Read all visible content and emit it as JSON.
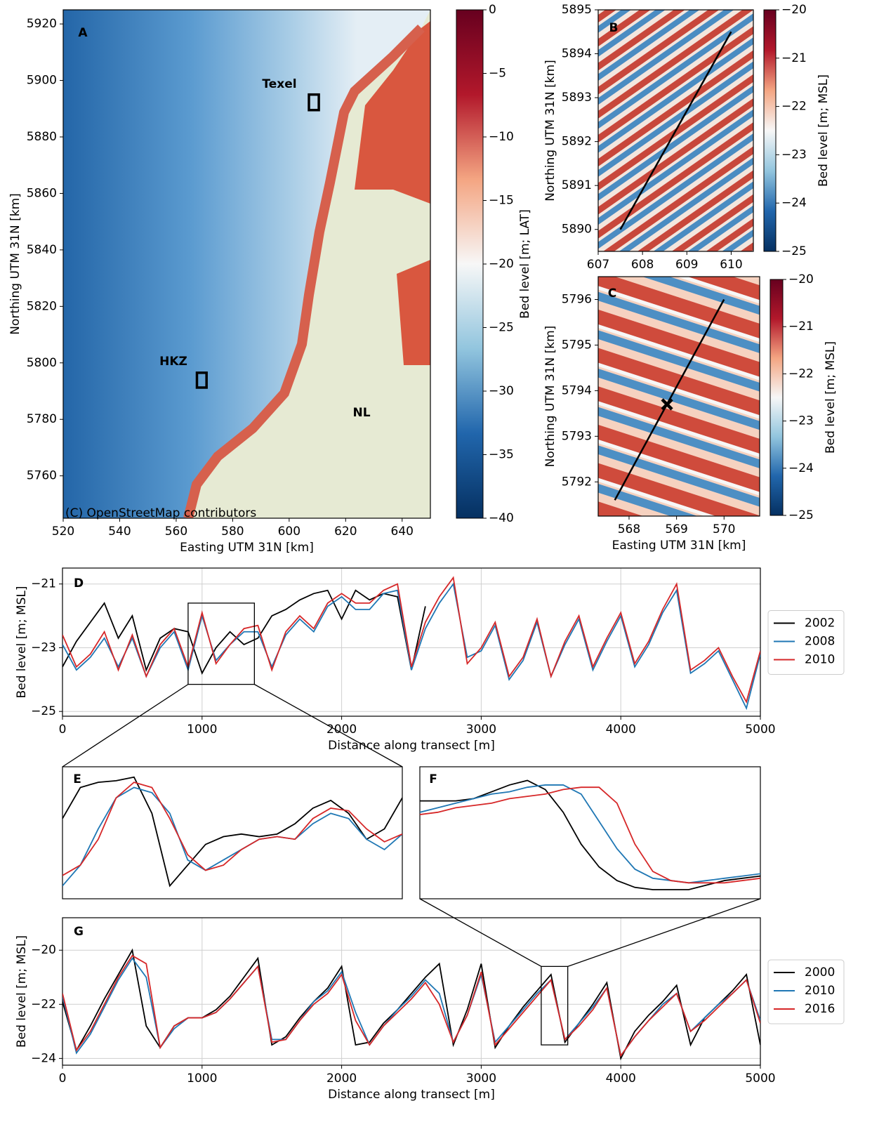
{
  "chart_data": [
    {
      "type": "map",
      "title": "A",
      "xlabel": "Easting UTM 31N [km]",
      "ylabel": "Northing UTM 31N [km]",
      "xlim": [
        520,
        650
      ],
      "ylim": [
        5745,
        5925
      ],
      "xticks": [
        520,
        540,
        560,
        580,
        600,
        620,
        640
      ],
      "yticks": [
        5760,
        5780,
        5800,
        5820,
        5840,
        5860,
        5880,
        5900,
        5920
      ],
      "annotations": [
        "Texel",
        "HKZ",
        "NL",
        "(C) OpenStreetMap contributors"
      ],
      "colorbar": {
        "label": "Bed level [m; LAT]",
        "clim": [
          -40,
          0
        ],
        "ticks": [
          0,
          {
            "value": -5,
            "label": "−5"
          },
          {
            "value": -10,
            "label": "−10"
          },
          {
            "value": -15,
            "label": "−15"
          },
          {
            "value": -20,
            "label": "−20"
          },
          {
            "value": -25,
            "label": "−25"
          },
          {
            "value": -30,
            "label": "−30"
          },
          {
            "value": -35,
            "label": "−35"
          },
          {
            "value": -40,
            "label": "−40"
          }
        ],
        "colormap": [
          "#053061",
          "#2166ac",
          "#92c5de",
          "#f7f7f7",
          "#f4a582",
          "#b2182b",
          "#67001f"
        ]
      }
    },
    {
      "type": "map",
      "title": "B",
      "ylabel": "Northing UTM 31N [km]",
      "xlim": [
        607,
        610.5
      ],
      "ylim": [
        5889.5,
        5895
      ],
      "xticks": [
        607,
        608,
        609,
        610
      ],
      "yticks": [
        5890,
        5891,
        5892,
        5893,
        5894,
        5895
      ],
      "transect": {
        "x": [
          607.5,
          610
        ],
        "y": [
          5890,
          5894.5
        ]
      },
      "colorbar": {
        "label": "Bed level [m; MSL]",
        "clim": [
          -25,
          -20
        ],
        "ticks": [
          {
            "value": -20,
            "label": "−20"
          },
          {
            "value": -21,
            "label": "−21"
          },
          {
            "value": -22,
            "label": "−22"
          },
          {
            "value": -23,
            "label": "−23"
          },
          {
            "value": -24,
            "label": "−24"
          },
          {
            "value": -25,
            "label": "−25"
          }
        ],
        "colormap": [
          "#053061",
          "#2166ac",
          "#92c5de",
          "#f7f7f7",
          "#f4a582",
          "#b2182b",
          "#67001f"
        ]
      }
    },
    {
      "type": "map",
      "title": "C",
      "xlabel": "Easting UTM 31N [km]",
      "ylabel": "Northing UTM 31N [km]",
      "xlim": [
        567.35,
        570.75
      ],
      "ylim": [
        5791.25,
        5796.5
      ],
      "xticks": [
        568,
        569,
        570
      ],
      "yticks": [
        5792,
        5793,
        5794,
        5795,
        5796
      ],
      "transect": {
        "x": [
          567.7,
          570
        ],
        "y": [
          5791.6,
          5796
        ]
      },
      "marker": {
        "x": 568.8,
        "y": 5793.7
      },
      "colorbar": {
        "label": "Bed level [m; MSL]",
        "clim": [
          -25,
          -20
        ],
        "ticks": [
          {
            "value": -20,
            "label": "−20"
          },
          {
            "value": -21,
            "label": "−21"
          },
          {
            "value": -22,
            "label": "−22"
          },
          {
            "value": -23,
            "label": "−23"
          },
          {
            "value": -24,
            "label": "−24"
          },
          {
            "value": -25,
            "label": "−25"
          }
        ],
        "colormap": [
          "#053061",
          "#2166ac",
          "#92c5de",
          "#f7f7f7",
          "#f4a582",
          "#b2182b",
          "#67001f"
        ]
      }
    },
    {
      "type": "line",
      "title": "D",
      "xlabel": "Distance along transect [m]",
      "ylabel": "Bed level [m; MSL]",
      "xlim": [
        0,
        5000
      ],
      "ylim": [
        -25.15,
        -20.5
      ],
      "grid": true,
      "legend": "right",
      "xticks": [
        0,
        1000,
        2000,
        3000,
        4000,
        5000
      ],
      "yticks": [
        {
          "value": -21,
          "label": "−21"
        },
        {
          "value": -23,
          "label": "−23"
        },
        {
          "value": -25,
          "label": "−25"
        }
      ],
      "x": [
        0,
        100,
        200,
        300,
        400,
        500,
        600,
        700,
        800,
        900,
        1000,
        1100,
        1200,
        1300,
        1400,
        1500,
        1600,
        1700,
        1800,
        1900,
        2000,
        2100,
        2200,
        2300,
        2400,
        2500,
        2600,
        2700,
        2800,
        2900,
        3000,
        3100,
        3200,
        3300,
        3400,
        3500,
        3600,
        3700,
        3800,
        3900,
        4000,
        4100,
        4200,
        4300,
        4400,
        4500,
        4600,
        4700,
        4800,
        4900,
        5000
      ],
      "series": [
        {
          "name": "2002",
          "color": "#000000",
          "values": [
            -23.6,
            -22.8,
            -22.2,
            -21.6,
            -22.7,
            -22.0,
            -23.7,
            -22.7,
            -22.4,
            -22.5,
            -23.8,
            -23.0,
            -22.5,
            -22.9,
            -22.7,
            -22.0,
            -21.8,
            -21.5,
            -21.3,
            -21.2,
            -22.1,
            -21.2,
            -21.5,
            -21.3,
            -21.4,
            -23.7,
            -21.7,
            null,
            null,
            null,
            null,
            null,
            null,
            null,
            null,
            null,
            null,
            null,
            null,
            null,
            null,
            null,
            null,
            null,
            null,
            null,
            null,
            null,
            null,
            null,
            null
          ]
        },
        {
          "name": "2008",
          "color": "#1f77b4",
          "values": [
            -22.9,
            -23.7,
            -23.3,
            -22.7,
            -23.6,
            -22.7,
            -23.9,
            -23.0,
            -22.5,
            -23.7,
            -22.0,
            -23.4,
            -22.9,
            -22.5,
            -22.5,
            -23.6,
            -22.6,
            -22.1,
            -22.5,
            -21.7,
            -21.4,
            -21.8,
            -21.8,
            -21.3,
            -21.2,
            -23.7,
            -22.4,
            -21.6,
            -21.0,
            -23.3,
            -23.1,
            -22.3,
            -24.0,
            -23.4,
            -22.2,
            -23.9,
            -22.9,
            -22.1,
            -23.7,
            -22.8,
            -22.0,
            -23.6,
            -22.9,
            -21.9,
            -21.2,
            -23.8,
            -23.5,
            -23.1,
            -24.0,
            -24.9,
            -23.2
          ]
        },
        {
          "name": "2010",
          "color": "#d62728",
          "values": [
            -22.6,
            -23.6,
            -23.2,
            -22.5,
            -23.7,
            -22.6,
            -23.9,
            -22.9,
            -22.4,
            -23.6,
            -21.9,
            -23.5,
            -22.9,
            -22.4,
            -22.3,
            -23.7,
            -22.5,
            -22.0,
            -22.4,
            -21.6,
            -21.3,
            -21.6,
            -21.6,
            -21.2,
            -21.0,
            -23.6,
            -22.2,
            -21.4,
            -20.8,
            -23.5,
            -23.0,
            -22.2,
            -23.9,
            -23.3,
            -22.1,
            -23.9,
            -22.8,
            -22.0,
            -23.6,
            -22.7,
            -21.9,
            -23.5,
            -22.8,
            -21.8,
            -21.0,
            -23.7,
            -23.4,
            -23.0,
            -23.9,
            -24.7,
            -23.1
          ]
        }
      ]
    },
    {
      "type": "line",
      "title": "E",
      "xlim": [
        900,
        1375
      ],
      "ylim": [
        -24.15,
        -21.6
      ],
      "x": [
        900,
        925,
        950,
        975,
        1000,
        1025,
        1050,
        1075,
        1100,
        1125,
        1150,
        1175,
        1200,
        1225,
        1250,
        1275,
        1300,
        1325,
        1350,
        1375
      ],
      "series": [
        {
          "color": "#000000",
          "values": [
            -22.6,
            -22.0,
            -21.9,
            -21.87,
            -21.8,
            -22.5,
            -23.9,
            -23.5,
            -23.1,
            -22.95,
            -22.9,
            -22.95,
            -22.9,
            -22.7,
            -22.4,
            -22.25,
            -22.5,
            -23.0,
            -22.8,
            -22.2
          ]
        },
        {
          "color": "#1f77b4",
          "values": [
            -23.9,
            -23.5,
            -22.8,
            -22.2,
            -22.0,
            -22.1,
            -22.5,
            -23.4,
            -23.6,
            -23.4,
            -23.2,
            -23.0,
            -22.95,
            -23.0,
            -22.7,
            -22.5,
            -22.6,
            -23.0,
            -23.2,
            -22.9
          ]
        },
        {
          "color": "#d62728",
          "values": [
            -23.7,
            -23.5,
            -23.0,
            -22.2,
            -21.9,
            -22.0,
            -22.6,
            -23.3,
            -23.6,
            -23.5,
            -23.2,
            -23.0,
            -22.95,
            -23.0,
            -22.6,
            -22.4,
            -22.45,
            -22.8,
            -23.05,
            -22.9
          ]
        }
      ]
    },
    {
      "type": "line",
      "title": "F",
      "xlim": [
        3430,
        3620
      ],
      "ylim": [
        -23.5,
        -20.6
      ],
      "x": [
        3430,
        3440,
        3450,
        3460,
        3470,
        3480,
        3490,
        3500,
        3510,
        3520,
        3530,
        3540,
        3550,
        3560,
        3570,
        3580,
        3590,
        3600,
        3610,
        3620
      ],
      "series": [
        {
          "color": "#000000",
          "values": [
            -21.35,
            -21.35,
            -21.35,
            -21.3,
            -21.15,
            -21.0,
            -20.9,
            -21.1,
            -21.6,
            -22.3,
            -22.8,
            -23.1,
            -23.25,
            -23.3,
            -23.3,
            -23.3,
            -23.2,
            -23.1,
            -23.05,
            -23.0
          ]
        },
        {
          "color": "#1f77b4",
          "values": [
            -21.6,
            -21.5,
            -21.4,
            -21.3,
            -21.2,
            -21.15,
            -21.05,
            -21.0,
            -21.0,
            -21.2,
            -21.8,
            -22.4,
            -22.85,
            -23.05,
            -23.1,
            -23.15,
            -23.1,
            -23.05,
            -23.0,
            -22.95
          ]
        },
        {
          "color": "#d62728",
          "values": [
            -21.65,
            -21.6,
            -21.5,
            -21.45,
            -21.4,
            -21.3,
            -21.25,
            -21.2,
            -21.1,
            -21.05,
            -21.05,
            -21.4,
            -22.3,
            -22.9,
            -23.1,
            -23.15,
            -23.15,
            -23.15,
            -23.1,
            -23.05
          ]
        }
      ]
    },
    {
      "type": "line",
      "title": "G",
      "xlabel": "Distance along transect [m]",
      "ylabel": "Bed level [m; MSL]",
      "xlim": [
        0,
        5000
      ],
      "ylim": [
        -24.25,
        -18.8
      ],
      "grid": true,
      "legend": "right",
      "xticks": [
        0,
        1000,
        2000,
        3000,
        4000,
        5000
      ],
      "yticks": [
        {
          "value": -20,
          "label": "−20"
        },
        {
          "value": -22,
          "label": "−22"
        },
        {
          "value": -24,
          "label": "−24"
        }
      ],
      "x": [
        0,
        100,
        200,
        300,
        400,
        500,
        600,
        700,
        800,
        900,
        1000,
        1100,
        1200,
        1300,
        1400,
        1500,
        1600,
        1700,
        1800,
        1900,
        2000,
        2100,
        2200,
        2300,
        2400,
        2500,
        2600,
        2700,
        2800,
        2900,
        3000,
        3100,
        3200,
        3300,
        3400,
        3500,
        3600,
        3700,
        3800,
        3900,
        4000,
        4100,
        4200,
        4300,
        4400,
        4500,
        4600,
        4700,
        4800,
        4900,
        5000
      ],
      "series": [
        {
          "name": "2000",
          "color": "#000000",
          "values": [
            -21.9,
            -23.7,
            -22.8,
            -21.8,
            -20.9,
            -20.0,
            -22.8,
            -23.6,
            -22.8,
            -22.5,
            -22.5,
            -22.2,
            -21.7,
            -21.0,
            -20.3,
            -23.5,
            -23.2,
            -22.5,
            -21.9,
            -21.4,
            -20.6,
            -23.5,
            -23.4,
            -22.7,
            -22.2,
            -21.6,
            -21.0,
            -20.5,
            -23.5,
            -22.2,
            -20.5,
            -23.6,
            -22.8,
            -22.1,
            -21.5,
            -20.9,
            -23.4,
            -22.7,
            -22.0,
            -21.2,
            -24.0,
            -23.0,
            -22.4,
            -21.9,
            -21.3,
            -23.5,
            -22.5,
            -22.0,
            -21.5,
            -20.9,
            -23.5
          ]
        },
        {
          "name": "2010",
          "color": "#1f77b4",
          "values": [
            -21.7,
            -23.8,
            -23.1,
            -22.1,
            -21.1,
            -20.3,
            -21.0,
            -23.6,
            -22.9,
            -22.5,
            -22.5,
            -22.3,
            -21.8,
            -21.2,
            -20.6,
            -23.3,
            -23.3,
            -22.6,
            -21.9,
            -21.5,
            -20.8,
            -22.3,
            -23.5,
            -22.8,
            -22.2,
            -21.7,
            -21.1,
            -21.6,
            -23.4,
            -22.4,
            -20.9,
            -23.4,
            -22.8,
            -22.2,
            -21.6,
            -21.1,
            -23.3,
            -22.7,
            -22.1,
            -21.4,
            -23.9,
            -23.2,
            -22.6,
            -22.0,
            -21.6,
            -23.0,
            -22.5,
            -22.0,
            -21.6,
            -21.1,
            -22.6
          ]
        },
        {
          "name": "2016",
          "color": "#d62728",
          "values": [
            -21.6,
            -23.7,
            -23.0,
            -22.0,
            -21.0,
            -20.2,
            -20.5,
            -23.6,
            -22.8,
            -22.5,
            -22.5,
            -22.3,
            -21.8,
            -21.2,
            -20.6,
            -23.4,
            -23.3,
            -22.6,
            -22.0,
            -21.6,
            -20.9,
            -22.6,
            -23.5,
            -22.8,
            -22.3,
            -21.8,
            -21.2,
            -22.0,
            -23.4,
            -22.4,
            -20.8,
            -23.5,
            -22.9,
            -22.3,
            -21.7,
            -21.1,
            -23.3,
            -22.8,
            -22.2,
            -21.4,
            -23.9,
            -23.2,
            -22.6,
            -22.1,
            -21.6,
            -23.0,
            -22.6,
            -22.1,
            -21.6,
            -21.1,
            -22.7
          ]
        }
      ]
    }
  ]
}
